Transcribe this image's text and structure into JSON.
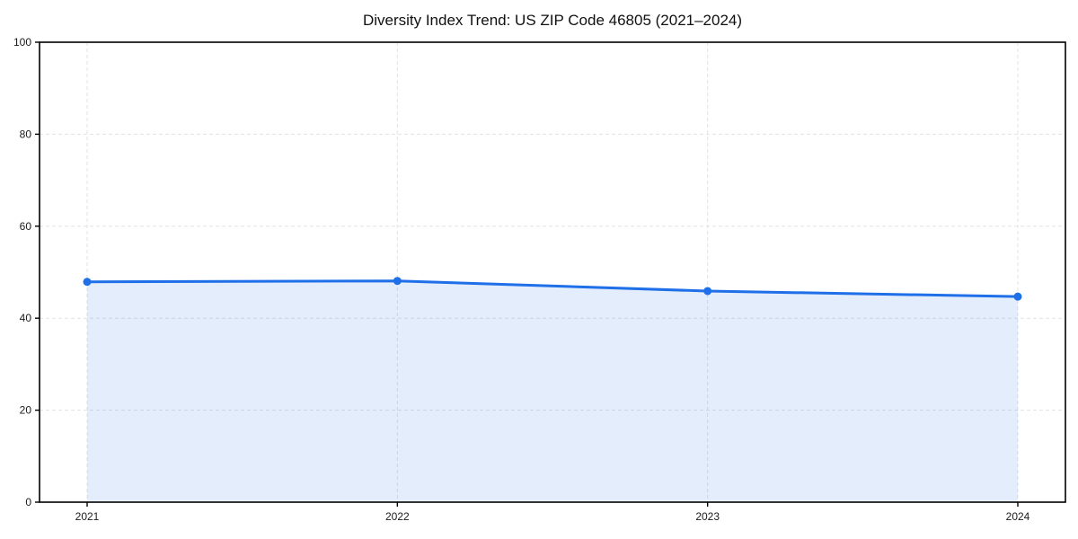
{
  "chart_data": {
    "type": "area",
    "title": "Diversity Index Trend: US ZIP Code 46805 (2021–2024)",
    "categories": [
      "2021",
      "2022",
      "2023",
      "2024"
    ],
    "values": [
      47.9,
      48.1,
      45.9,
      44.7
    ],
    "xlabel": "",
    "ylabel": "",
    "ylim": [
      0,
      100
    ],
    "yticks": [
      0,
      20,
      40,
      60,
      80,
      100
    ],
    "ytick_labels": [
      "0",
      "20",
      "40",
      "60",
      "80",
      "100"
    ],
    "grid": true,
    "grid_style": "dashed",
    "legend": "none",
    "colors": {
      "line": "#1e6fe8",
      "marker": "#1e6fe8",
      "fill": "#1e6fe8",
      "fill_opacity": 0.12,
      "grid": "#e3e3e3",
      "axis": "#000000",
      "text": "#1a1a1a",
      "background": "#ffffff"
    }
  }
}
